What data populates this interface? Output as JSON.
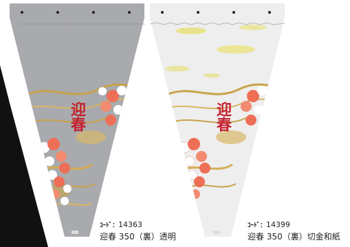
{
  "products": [
    {
      "code_label": "ｺｰﾄﾞ：",
      "code": "14363",
      "name": "迎春 350（裏）透明",
      "greeting": "迎春",
      "background_color": "#a7a9ac"
    },
    {
      "code_label": "ｺｰﾄﾞ：",
      "code": "14399",
      "name": "迎春 350（裏）切金和紙",
      "greeting": "迎春",
      "background_color": "#f2f2f2"
    }
  ]
}
